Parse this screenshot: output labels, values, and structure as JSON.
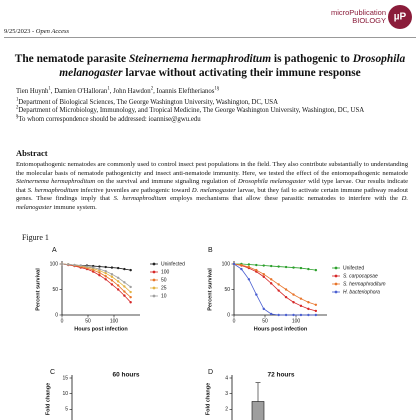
{
  "header": {
    "journal": "microPublication",
    "journal_sub": "BIOLOGY",
    "logo": "µP",
    "date_line": [
      "9/25/2023 - ",
      "Open Access"
    ]
  },
  "title": [
    "The nematode parasite ",
    "Steinernema hermaphroditum",
    " is pathogenic to ",
    "Drosophila melanogaster",
    " larvae without activating their immune response"
  ],
  "authors": [
    {
      "name": "Tien Huynh",
      "sup": "1"
    },
    {
      "name": "Damien O'Halloran",
      "sup": "1"
    },
    {
      "name": "John Hawdon",
      "sup": "2"
    },
    {
      "name": "Ioannis Eleftherianos",
      "sup": "1§"
    }
  ],
  "affiliations": [
    {
      "sup": "1",
      "text": "Department of Biological Sciences, The George Washington University, Washington, DC, USA"
    },
    {
      "sup": "2",
      "text": "Department of Microbiology, Immunology, and Tropical Medicine, The George Washington University, Washington, DC, USA"
    },
    {
      "sup": "§",
      "text": "To whom correspondence should be addressed: ioannise@gwu.edu"
    }
  ],
  "abstract": {
    "heading": "Abstract",
    "text": [
      "Entomopathogenic nematodes are commonly used to control insect pest populations in the field. They also contribute substantially to understanding the molecular basis of nematode pathogenicity and insect anti-nematode immunity. Here, we tested the effect of the entomopathogenic nematode ",
      "Steinernema hermaphroditum",
      " on the survival and immune signaling regulation of ",
      "Drosophila melanogaster",
      " wild type larvae. Our results indicate that ",
      "S. hermaphroditum",
      " infective juveniles are pathogenic toward ",
      "D. melanogaster",
      " larvae, but they fail to activate certain immune pathway readout genes. These findings imply that ",
      "S. hermaphroditum",
      " employs mechanisms that allow these parasitic nematodes to interfere with the ",
      "D. melanogaster",
      " immune system."
    ]
  },
  "figure": {
    "label": "Figure 1",
    "panels": [
      {
        "letter": "A",
        "type": "line",
        "ylabel": "Percent survival",
        "xlabel": "Hours post infection",
        "x": [
          0,
          12,
          24,
          36,
          48,
          60,
          72,
          84,
          96,
          108,
          120,
          132
        ],
        "xlim": [
          0,
          150
        ],
        "ylim": [
          0,
          100
        ],
        "xticks": [
          0,
          50,
          100
        ],
        "yticks": [
          0,
          50,
          100
        ],
        "series": [
          {
            "name": "Uninfected",
            "color": "#222222",
            "values": [
              100,
              99,
              98,
              97,
              97,
              96,
              95,
              94,
              93,
              92,
              90,
              88
            ]
          },
          {
            "name": "100",
            "color": "#d62728",
            "values": [
              100,
              98,
              96,
              93,
              90,
              85,
              78,
              70,
              60,
              50,
              38,
              25
            ]
          },
          {
            "name": "50",
            "color": "#e8742a",
            "values": [
              100,
              99,
              97,
              95,
              92,
              88,
              83,
              76,
              68,
              58,
              46,
              35
            ]
          },
          {
            "name": "25",
            "color": "#e3b341",
            "values": [
              100,
              99,
              98,
              96,
              94,
              91,
              87,
              82,
              75,
              66,
              56,
              45
            ]
          },
          {
            "name": "10",
            "color": "#a0a0a0",
            "values": [
              100,
              99,
              98,
              97,
              95,
              93,
              90,
              86,
              80,
              73,
              64,
              55
            ]
          }
        ]
      },
      {
        "letter": "B",
        "type": "line",
        "ylabel": "Percent survival",
        "xlabel": "Hours post infection",
        "x": [
          0,
          12,
          24,
          36,
          48,
          60,
          72,
          84,
          96,
          108,
          120,
          132
        ],
        "xlim": [
          0,
          150
        ],
        "ylim": [
          0,
          100
        ],
        "xticks": [
          0,
          50,
          100
        ],
        "yticks": [
          0,
          50,
          100
        ],
        "series": [
          {
            "name": "Unifected",
            "color": "#2ca02c",
            "values": [
              100,
              100,
              99,
              98,
              97,
              96,
              95,
              94,
              93,
              92,
              90,
              88
            ]
          },
          {
            "name": "S. carpocapsae",
            "color": "#d62728",
            "values": [
              100,
              97,
              92,
              85,
              75,
              62,
              48,
              35,
              25,
              18,
              12,
              8
            ]
          },
          {
            "name": "S. hermaphroditum",
            "color": "#e8742a",
            "values": [
              100,
              98,
              94,
              88,
              80,
              70,
              60,
              50,
              40,
              32,
              25,
              20
            ]
          },
          {
            "name": "H. bacteriophora",
            "color": "#4a5fd1",
            "values": [
              100,
              90,
              70,
              40,
              12,
              2,
              0,
              0,
              0,
              0,
              0,
              0
            ]
          }
        ]
      },
      {
        "letter": "C",
        "type": "bar",
        "title": "60 hours",
        "ylabel": "Fold change",
        "ylim": [
          0,
          15
        ],
        "yticks": [
          5,
          10,
          15
        ]
      },
      {
        "letter": "D",
        "type": "bar",
        "title": "72 hours",
        "ylabel": "Fold change",
        "ylim": [
          1,
          4
        ],
        "yticks": [
          2,
          3,
          4
        ],
        "values": [
          2.5
        ],
        "errors": [
          1.2
        ],
        "color": "#9e9e9e"
      }
    ]
  }
}
